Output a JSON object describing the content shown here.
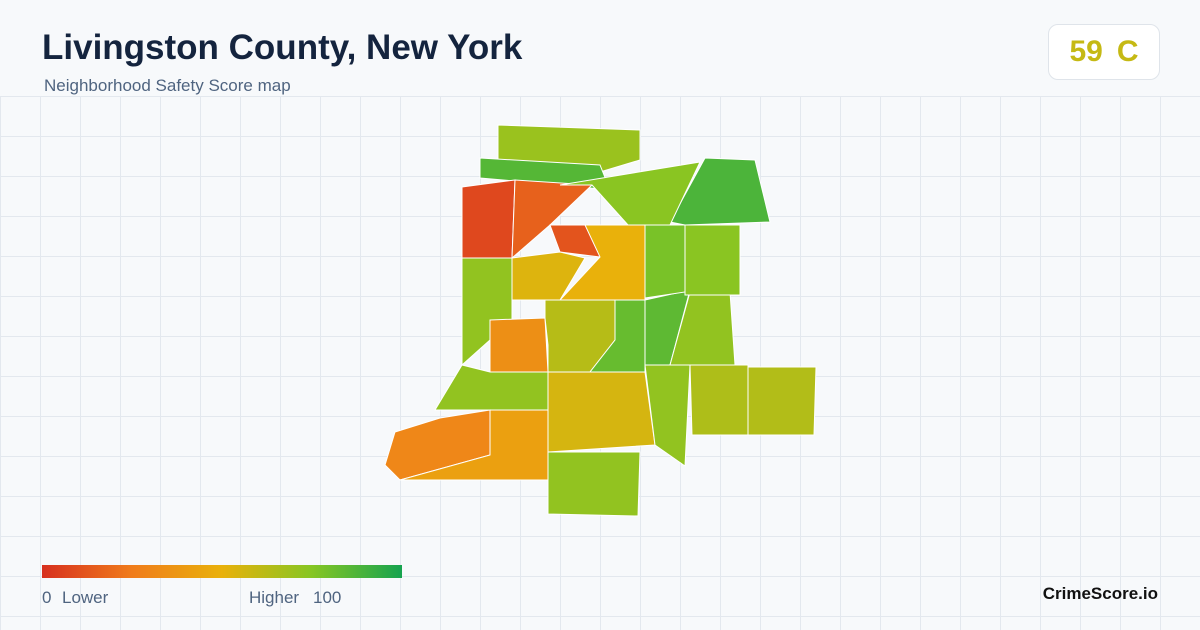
{
  "header": {
    "title": "Livingston County, New York",
    "subtitle": "Neighborhood Safety Score map",
    "score": 59,
    "grade": "C"
  },
  "legend": {
    "min": 0,
    "min_label": "Lower",
    "max_label": "Higher",
    "max": 100,
    "colors": [
      "#d7301f",
      "#f07c1b",
      "#e9b10b",
      "#86c623",
      "#16a34f"
    ]
  },
  "regions": [
    {
      "score": 70
    },
    {
      "score": 86
    },
    {
      "score": 88
    },
    {
      "score": 8
    },
    {
      "score": 16
    },
    {
      "score": 12
    },
    {
      "score": 50
    },
    {
      "score": 53
    },
    {
      "score": 72
    },
    {
      "score": 34
    },
    {
      "score": 5
    },
    {
      "score": 63
    },
    {
      "score": 82
    },
    {
      "score": 84
    },
    {
      "score": 72
    },
    {
      "score": 74
    },
    {
      "score": 72
    },
    {
      "score": 30
    },
    {
      "score": 42
    },
    {
      "score": 55
    },
    {
      "score": 72
    },
    {
      "score": 65
    },
    {
      "score": 64
    },
    {
      "score": 72
    },
    {
      "score": 78
    },
    {
      "score": 74
    }
  ],
  "brand": "CrimeScore.io"
}
